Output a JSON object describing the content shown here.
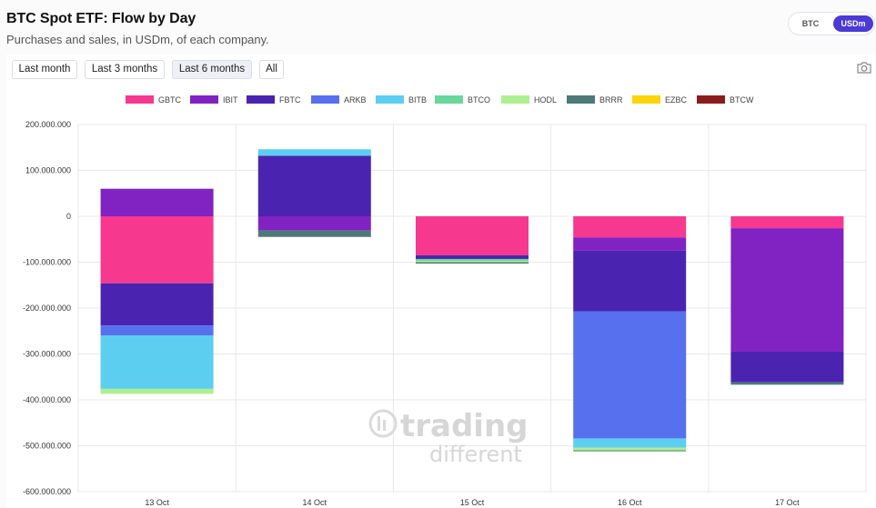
{
  "header": {
    "title": "BTC Spot ETF: Flow by Day",
    "subtitle": "Purchases and sales, in USDm, of each company."
  },
  "unit_toggle": {
    "options": [
      "BTC",
      "USDm"
    ],
    "selected": "USDm"
  },
  "time_ranges": {
    "options": [
      "Last month",
      "Last 3 months",
      "Last 6 months",
      "All"
    ],
    "selected": "Last 6 months"
  },
  "toolbar": {
    "camera_icon": "camera-icon"
  },
  "watermark": {
    "line1": "trading",
    "line2": "different"
  },
  "colors": {
    "GBTC": "#f7388f",
    "IBIT": "#8122c2",
    "FBTC": "#4a24b0",
    "ARKB": "#5670ee",
    "BITB": "#5ccef0",
    "BTCO": "#69d69b",
    "HODL": "#aef08f",
    "BRRR": "#4d7a78",
    "EZBC": "#fbd50a",
    "BTCW": "#8a1c1c",
    "accent": "#4b3ad6"
  },
  "chart_data": {
    "type": "bar",
    "stacked": true,
    "title": "BTC Spot ETF: Flow by Day",
    "xlabel": "",
    "ylabel": "",
    "categories": [
      "13 Oct",
      "14 Oct",
      "15 Oct",
      "16 Oct",
      "17 Oct"
    ],
    "ylim": [
      -600000000,
      200000000
    ],
    "yticks": [
      200000000,
      100000000,
      0,
      -100000000,
      -200000000,
      -300000000,
      -400000000,
      -500000000,
      -600000000
    ],
    "ytick_labels": [
      "200.000.000",
      "100.000.000",
      "0",
      "-100.000.000",
      "-200.000.000",
      "-300.000.000",
      "-400.000.000",
      "-500.000.000",
      "-600.000.000"
    ],
    "grid": true,
    "legend_position": "top-center",
    "series": [
      {
        "name": "GBTC",
        "values": [
          -146000000,
          0,
          -85000000,
          -46000000,
          -26000000
        ]
      },
      {
        "name": "IBIT",
        "values": [
          60000000,
          -31000000,
          0,
          -29000000,
          -269000000
        ]
      },
      {
        "name": "FBTC",
        "values": [
          -92000000,
          132000000,
          -8000000,
          -132000000,
          -67000000
        ]
      },
      {
        "name": "ARKB",
        "values": [
          -22000000,
          0,
          0,
          -277000000,
          0
        ]
      },
      {
        "name": "BITB",
        "values": [
          -116000000,
          14000000,
          0,
          -20000000,
          0
        ]
      },
      {
        "name": "BTCO",
        "values": [
          0,
          0,
          -4000000,
          0,
          0
        ]
      },
      {
        "name": "HODL",
        "values": [
          -11000000,
          0,
          -3000000,
          -6000000,
          0
        ]
      },
      {
        "name": "BRRR",
        "values": [
          0,
          -14000000,
          -3000000,
          -2000000,
          -5000000
        ]
      },
      {
        "name": "EZBC",
        "values": [
          0,
          0,
          0,
          0,
          0
        ]
      },
      {
        "name": "BTCW",
        "values": [
          0,
          0,
          0,
          0,
          0
        ]
      }
    ]
  }
}
